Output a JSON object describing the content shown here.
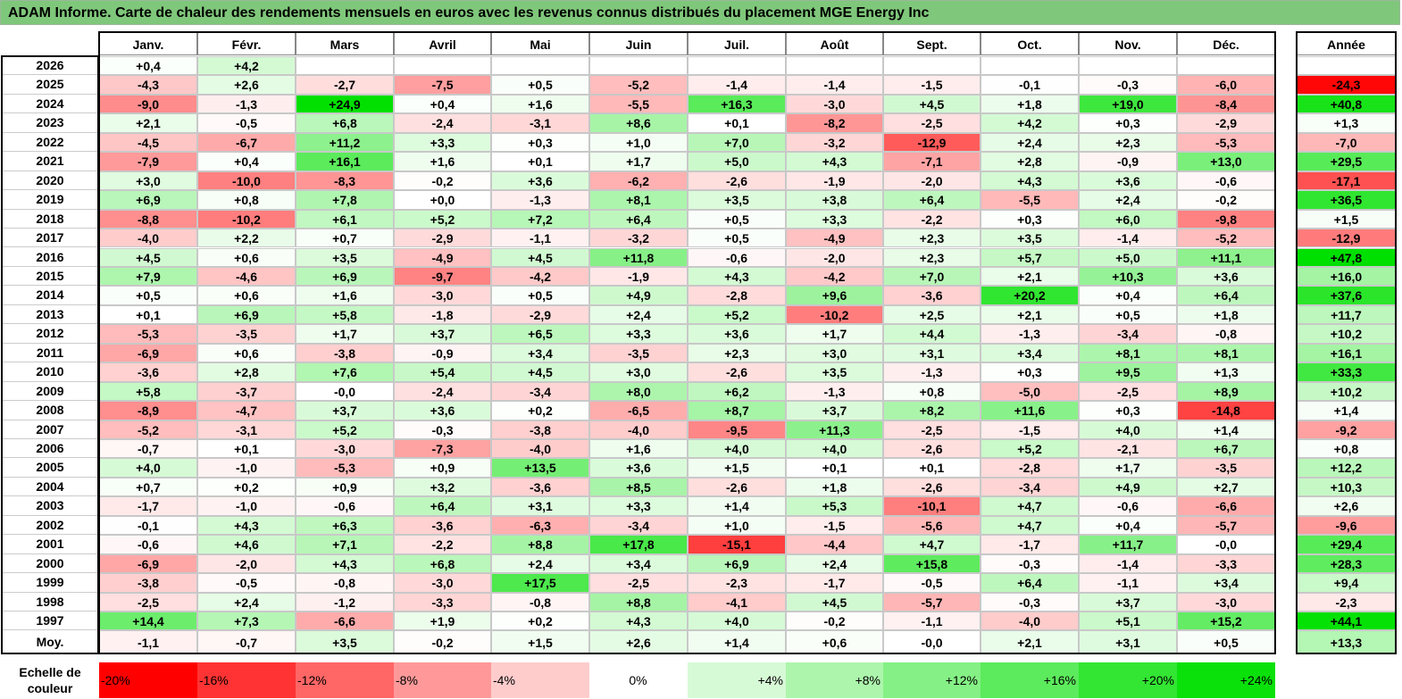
{
  "chart_data": {
    "type": "heatmap",
    "title": "ADAM Informe. Carte de chaleur des rendements mensuels en euros avec les revenus connus distribués du placement MGE Energy Inc",
    "months": [
      "Janv.",
      "Févr.",
      "Mars",
      "Avril",
      "Mai",
      "Juin",
      "Juil.",
      "Août",
      "Sept.",
      "Oct.",
      "Nov.",
      "Déc."
    ],
    "year_header": "Année",
    "avg_label": "Moy.",
    "scale_label": "Echelle de couleur",
    "rows": [
      {
        "year": "2026",
        "values": [
          "+0,4",
          "+4,2",
          "",
          "",
          "",
          "",
          "",
          "",
          "",
          "",
          "",
          ""
        ],
        "annual": ""
      },
      {
        "year": "2025",
        "values": [
          "-4,3",
          "+2,6",
          "-2,7",
          "-7,5",
          "+0,5",
          "-5,2",
          "-1,4",
          "-1,4",
          "-1,5",
          "-0,1",
          "-0,3",
          "-6,0"
        ],
        "annual": "-24,3"
      },
      {
        "year": "2024",
        "values": [
          "-9,0",
          "-1,3",
          "+24,9",
          "+0,4",
          "+1,6",
          "-5,5",
          "+16,3",
          "-3,0",
          "+4,5",
          "+1,8",
          "+19,0",
          "-8,4"
        ],
        "annual": "+40,8"
      },
      {
        "year": "2023",
        "values": [
          "+2,1",
          "-0,5",
          "+6,8",
          "-2,4",
          "-3,1",
          "+8,6",
          "+0,1",
          "-8,2",
          "-2,5",
          "+4,2",
          "+0,3",
          "-2,9"
        ],
        "annual": "+1,3"
      },
      {
        "year": "2022",
        "values": [
          "-4,5",
          "-6,7",
          "+11,2",
          "+3,3",
          "+0,3",
          "+1,0",
          "+7,0",
          "-3,2",
          "-12,9",
          "+2,4",
          "+2,3",
          "-5,3"
        ],
        "annual": "-7,0"
      },
      {
        "year": "2021",
        "values": [
          "-7,9",
          "+0,4",
          "+16,1",
          "+1,6",
          "+0,1",
          "+1,7",
          "+5,0",
          "+4,3",
          "-7,1",
          "+2,8",
          "-0,9",
          "+13,0"
        ],
        "annual": "+29,5"
      },
      {
        "year": "2020",
        "values": [
          "+3,0",
          "-10,0",
          "-8,3",
          "-0,2",
          "+3,6",
          "-6,2",
          "-2,6",
          "-1,9",
          "-2,0",
          "+4,3",
          "+3,6",
          "-0,6"
        ],
        "annual": "-17,1"
      },
      {
        "year": "2019",
        "values": [
          "+6,9",
          "+0,8",
          "+7,8",
          "+0,0",
          "-1,3",
          "+8,1",
          "+3,5",
          "+3,8",
          "+6,4",
          "-5,5",
          "+2,4",
          "-0,2"
        ],
        "annual": "+36,5"
      },
      {
        "year": "2018",
        "values": [
          "-8,8",
          "-10,2",
          "+6,1",
          "+5,2",
          "+7,2",
          "+6,4",
          "+0,5",
          "+3,3",
          "-2,2",
          "+0,3",
          "+6,0",
          "-9,8"
        ],
        "annual": "+1,5"
      },
      {
        "year": "2017",
        "values": [
          "-4,0",
          "+2,2",
          "+0,7",
          "-2,9",
          "-1,1",
          "-3,2",
          "+0,5",
          "-4,9",
          "+2,3",
          "+3,5",
          "-1,4",
          "-5,2"
        ],
        "annual": "-12,9"
      },
      {
        "year": "2016",
        "values": [
          "+4,5",
          "+0,6",
          "+3,5",
          "-4,9",
          "+4,5",
          "+11,8",
          "-0,6",
          "-2,0",
          "+2,3",
          "+5,7",
          "+5,0",
          "+11,1"
        ],
        "annual": "+47,8"
      },
      {
        "year": "2015",
        "values": [
          "+7,9",
          "-4,6",
          "+6,9",
          "-9,7",
          "-4,2",
          "-1,9",
          "+4,3",
          "-4,2",
          "+7,0",
          "+2,1",
          "+10,3",
          "+3,6"
        ],
        "annual": "+16,0"
      },
      {
        "year": "2014",
        "values": [
          "+0,5",
          "+0,6",
          "+1,6",
          "-3,0",
          "+0,5",
          "+4,9",
          "-2,8",
          "+9,6",
          "-3,6",
          "+20,2",
          "+0,4",
          "+6,4"
        ],
        "annual": "+37,6"
      },
      {
        "year": "2013",
        "values": [
          "+0,1",
          "+6,9",
          "+5,8",
          "-1,8",
          "-2,9",
          "+2,4",
          "+5,2",
          "-10,2",
          "+2,5",
          "+2,1",
          "+0,5",
          "+1,8"
        ],
        "annual": "+11,7"
      },
      {
        "year": "2012",
        "values": [
          "-5,3",
          "-3,5",
          "+1,7",
          "+3,7",
          "+6,5",
          "+3,3",
          "+3,6",
          "+1,7",
          "+4,4",
          "-1,3",
          "-3,4",
          "-0,8"
        ],
        "annual": "+10,2"
      },
      {
        "year": "2011",
        "values": [
          "-6,9",
          "+0,6",
          "-3,8",
          "-0,9",
          "+3,4",
          "-3,5",
          "+2,3",
          "+3,0",
          "+3,1",
          "+3,4",
          "+8,1",
          "+8,1"
        ],
        "annual": "+16,1"
      },
      {
        "year": "2010",
        "values": [
          "-3,6",
          "+2,8",
          "+7,6",
          "+5,4",
          "+4,5",
          "+3,0",
          "-2,6",
          "+3,5",
          "-1,3",
          "+0,3",
          "+9,5",
          "+1,3"
        ],
        "annual": "+33,3"
      },
      {
        "year": "2009",
        "values": [
          "+5,8",
          "-3,7",
          "-0,0",
          "-2,4",
          "-3,4",
          "+8,0",
          "+6,2",
          "-1,3",
          "+0,8",
          "-5,0",
          "-2,5",
          "+8,9"
        ],
        "annual": "+10,2"
      },
      {
        "year": "2008",
        "values": [
          "-8,9",
          "-4,7",
          "+3,7",
          "+3,6",
          "+0,2",
          "-6,5",
          "+8,7",
          "+3,7",
          "+8,2",
          "+11,6",
          "+0,3",
          "-14,8"
        ],
        "annual": "+1,4"
      },
      {
        "year": "2007",
        "values": [
          "-5,2",
          "-3,1",
          "+5,2",
          "-0,3",
          "-3,8",
          "-4,0",
          "-9,5",
          "+11,3",
          "-2,5",
          "-1,5",
          "+4,0",
          "+1,4"
        ],
        "annual": "-9,2"
      },
      {
        "year": "2006",
        "values": [
          "-0,7",
          "+0,1",
          "-3,0",
          "-7,3",
          "-4,0",
          "+1,6",
          "+4,0",
          "+4,0",
          "-2,6",
          "+5,2",
          "-2,1",
          "+6,7"
        ],
        "annual": "+0,8"
      },
      {
        "year": "2005",
        "values": [
          "+4,0",
          "-1,0",
          "-5,3",
          "+0,9",
          "+13,5",
          "+3,6",
          "+1,5",
          "+0,1",
          "+0,1",
          "-2,8",
          "+1,7",
          "-3,5"
        ],
        "annual": "+12,2"
      },
      {
        "year": "2004",
        "values": [
          "+0,7",
          "+0,2",
          "+0,9",
          "+3,2",
          "-3,6",
          "+8,5",
          "-2,6",
          "+1,8",
          "-2,6",
          "-3,4",
          "+4,9",
          "+2,7"
        ],
        "annual": "+10,3"
      },
      {
        "year": "2003",
        "values": [
          "-1,7",
          "-1,0",
          "-0,6",
          "+6,4",
          "+3,1",
          "+3,3",
          "+1,4",
          "+5,3",
          "-10,1",
          "+4,7",
          "-0,6",
          "-6,6"
        ],
        "annual": "+2,6"
      },
      {
        "year": "2002",
        "values": [
          "-0,1",
          "+4,3",
          "+6,3",
          "-3,6",
          "-6,3",
          "-3,4",
          "+1,0",
          "-1,5",
          "-5,6",
          "+4,7",
          "+0,4",
          "-5,7"
        ],
        "annual": "-9,6"
      },
      {
        "year": "2001",
        "values": [
          "-0,6",
          "+4,6",
          "+7,1",
          "-2,2",
          "+8,8",
          "+17,8",
          "-15,1",
          "-4,4",
          "+4,7",
          "-1,7",
          "+11,7",
          "-0,0"
        ],
        "annual": "+29,4"
      },
      {
        "year": "2000",
        "values": [
          "-6,9",
          "-2,0",
          "+4,3",
          "+6,8",
          "+2,4",
          "+3,4",
          "+6,9",
          "+2,4",
          "+15,8",
          "-0,3",
          "-1,4",
          "-3,3"
        ],
        "annual": "+28,3"
      },
      {
        "year": "1999",
        "values": [
          "-3,8",
          "-0,5",
          "-0,8",
          "-3,0",
          "+17,5",
          "-2,5",
          "-2,3",
          "-1,7",
          "-0,5",
          "+6,4",
          "-1,1",
          "+3,4"
        ],
        "annual": "+9,4"
      },
      {
        "year": "1998",
        "values": [
          "-2,5",
          "+2,4",
          "-1,2",
          "-3,3",
          "-0,8",
          "+8,8",
          "-4,1",
          "+4,5",
          "-5,7",
          "-0,3",
          "+3,7",
          "-3,0"
        ],
        "annual": "-2,3"
      },
      {
        "year": "1997",
        "values": [
          "+14,4",
          "+7,3",
          "-6,6",
          "+1,9",
          "+0,2",
          "+4,3",
          "+4,0",
          "-0,2",
          "-1,1",
          "-4,0",
          "+5,1",
          "+15,2"
        ],
        "annual": "+44,1"
      }
    ],
    "averages": {
      "values": [
        "-1,1",
        "-0,7",
        "+3,5",
        "-0,2",
        "+1,5",
        "+2,6",
        "+1,4",
        "+0,6",
        "-0,0",
        "+2,1",
        "+3,1",
        "+0,5"
      ],
      "annual": "+13,3"
    },
    "scale": [
      "-20%",
      "-16%",
      "-12%",
      "-8%",
      "-4%",
      "0%",
      "+4%",
      "+8%",
      "+12%",
      "+16%",
      "+20%",
      "+24%"
    ],
    "colors": {
      "negative": "#ff0000",
      "positive": "#00e000",
      "neutral": "#ffffff"
    }
  }
}
